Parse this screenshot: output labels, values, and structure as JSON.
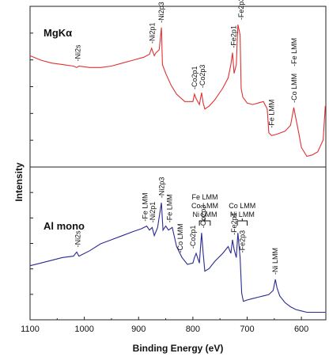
{
  "chart_data": {
    "type": "line",
    "xlabel": "Binding Energy (eV)",
    "ylabel": "Intensity",
    "xlim": [
      1100,
      555
    ],
    "x_reversed": true,
    "x_ticks": [
      1100,
      1000,
      900,
      800,
      700,
      600
    ],
    "grid": false,
    "panels": [
      {
        "title": "MgKα",
        "color": "#e03030",
        "series": [
          {
            "x": [
              1100,
              1080,
              1060,
              1040,
              1020,
              1014,
              1010,
              990,
              970,
              950,
              930,
              910,
              890,
              880,
              876,
              871,
              868,
              862,
              858,
              856,
              850,
              840,
              830,
              815,
              800,
              797,
              794,
              788,
              784,
              781,
              778,
              770,
              760,
              745,
              735,
              730,
              727,
              724,
              720,
              717,
              713,
              711,
              708,
              700,
              690,
              680,
              670,
              663,
              660,
              655,
              645,
              630,
              620,
              614,
              611,
              605,
              600,
              590,
              580,
              570,
              560,
              556
            ],
            "y": [
              0.72,
              0.69,
              0.67,
              0.66,
              0.65,
              0.64,
              0.65,
              0.64,
              0.64,
              0.65,
              0.67,
              0.69,
              0.71,
              0.73,
              0.77,
              0.72,
              0.74,
              0.76,
              0.91,
              0.66,
              0.6,
              0.52,
              0.46,
              0.41,
              0.41,
              0.46,
              0.43,
              0.39,
              0.47,
              0.4,
              0.36,
              0.38,
              0.42,
              0.5,
              0.57,
              0.66,
              0.74,
              0.6,
              0.66,
              0.93,
              0.86,
              0.5,
              0.44,
              0.4,
              0.39,
              0.4,
              0.41,
              0.36,
              0.2,
              0.18,
              0.19,
              0.21,
              0.25,
              0.37,
              0.31,
              0.2,
              0.1,
              0.04,
              0.05,
              0.07,
              0.15,
              0.38
            ]
          }
        ],
        "annotations": [
          {
            "text": "-Ni2s",
            "x": 1012
          },
          {
            "text": "-Ni2p1",
            "x": 875
          },
          {
            "text": "-Ni2p3",
            "x": 858
          },
          {
            "text": "-Co2p1",
            "x": 797
          },
          {
            "text": "-Co2p3",
            "x": 782
          },
          {
            "text": "-Fe2p1",
            "x": 725
          },
          {
            "text": "-Fe2p3",
            "x": 711
          },
          {
            "text": "-Fe LMM",
            "x": 655
          },
          {
            "text": "-Co LMM",
            "x": 613
          },
          {
            "text": "-Fe LMM",
            "x": 613
          }
        ]
      },
      {
        "title": "Al mono",
        "color": "#2a2a90",
        "series": [
          {
            "x": [
              1100,
              1080,
              1060,
              1040,
              1020,
              1014,
              1010,
              990,
              970,
              950,
              930,
              910,
              895,
              885,
              880,
              875,
              871,
              865,
              858,
              855,
              850,
              845,
              838,
              830,
              820,
              810,
              800,
              797,
              794,
              788,
              784,
              781,
              778,
              770,
              760,
              745,
              735,
              730,
              727,
              724,
              720,
              717,
              713,
              710,
              707,
              700,
              690,
              680,
              670,
              660,
              652,
              648,
              645,
              640,
              630,
              620,
              610,
              600,
              590,
              580,
              570,
              560,
              556
            ],
            "y": [
              0.36,
              0.38,
              0.4,
              0.42,
              0.43,
              0.46,
              0.43,
              0.47,
              0.52,
              0.55,
              0.58,
              0.61,
              0.63,
              0.65,
              0.62,
              0.64,
              0.58,
              0.64,
              0.82,
              0.62,
              0.65,
              0.62,
              0.64,
              0.5,
              0.42,
              0.37,
              0.38,
              0.42,
              0.45,
              0.38,
              0.6,
              0.45,
              0.32,
              0.34,
              0.39,
              0.45,
              0.5,
              0.45,
              0.55,
              0.48,
              0.42,
              0.6,
              0.42,
              0.16,
              0.1,
              0.11,
              0.12,
              0.13,
              0.14,
              0.15,
              0.18,
              0.26,
              0.2,
              0.14,
              0.09,
              0.06,
              0.04,
              0.03,
              0.02,
              0.02,
              0.02,
              0.02,
              0.02
            ]
          }
        ],
        "annotations": [
          {
            "text": "-Ni2s",
            "x": 1012
          },
          {
            "text": "-Fe LMM",
            "x": 888
          },
          {
            "text": "-Ni2p1",
            "x": 874
          },
          {
            "text": "-Ni2p3",
            "x": 857
          },
          {
            "text": "-Fe LMM",
            "x": 843
          },
          {
            "text": "-Co LMM",
            "x": 823
          },
          {
            "text": "-Co2p1",
            "x": 800
          },
          {
            "text": "-Co2p3",
            "x": 781
          },
          {
            "text": "-Fe2p1",
            "x": 724
          },
          {
            "text": "-Fe2p3",
            "x": 709
          },
          {
            "text": "-Ni LMM",
            "x": 648
          }
        ],
        "group_labels": [
          {
            "lines": [
              "Fe LMM",
              "Co LMM",
              "Ni LMM"
            ],
            "x_from": 788,
            "x_to": 768
          },
          {
            "lines": [
              "Co LMM",
              "Ni LMM"
            ],
            "x_from": 718,
            "x_to": 700
          }
        ]
      }
    ]
  }
}
